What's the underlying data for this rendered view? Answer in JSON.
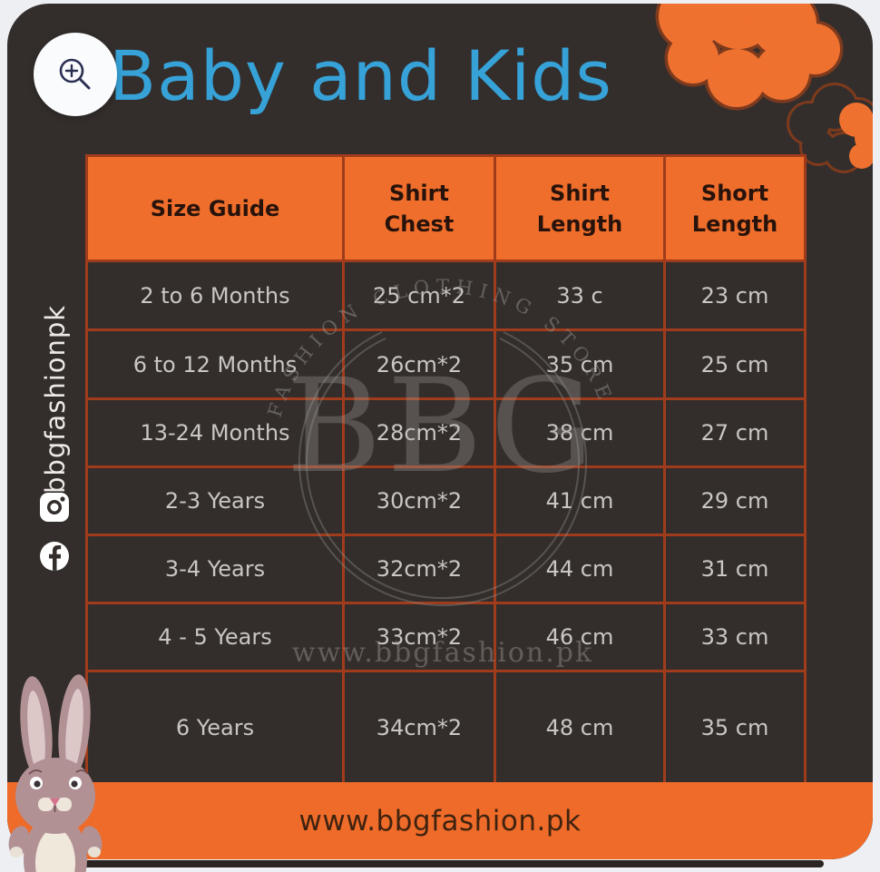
{
  "title": "Baby and Kids",
  "colors": {
    "card_background": "#332e2c",
    "accent_orange": "#ef6e2c",
    "title_blue": "#36a2d7",
    "table_grid": "#a03c1b",
    "cell_text": "#c9c6c3",
    "outer_background": "#edeff3"
  },
  "zoom_button": {
    "icon": "zoom-in-icon"
  },
  "social_rail": {
    "handle": "bbgfashionpk",
    "icons": [
      "instagram-icon",
      "facebook-icon"
    ]
  },
  "watermark": {
    "monogram": "BBG",
    "ring_text": "FASHION CLOTHING STORE",
    "url": "www.bbgfashion.pk"
  },
  "footer": {
    "url": "www.bbgfashion.pk"
  },
  "chart_data": {
    "type": "table",
    "title": "Baby and Kids",
    "columns": [
      "Size Guide",
      "Shirt Chest",
      "Shirt Length",
      "Short Length"
    ],
    "rows": [
      [
        "2 to 6 Months",
        "25 cm*2",
        "33 c",
        "23 cm"
      ],
      [
        "6 to 12 Months",
        "26cm*2",
        "35 cm",
        "25 cm"
      ],
      [
        "13-24 Months",
        "28cm*2",
        "38 cm",
        "27 cm"
      ],
      [
        "2-3 Years",
        "30cm*2",
        "41 cm",
        "29 cm"
      ],
      [
        "3-4 Years",
        "32cm*2",
        "44 cm",
        "31 cm"
      ],
      [
        "4 - 5 Years",
        "33cm*2",
        "46 cm",
        "33 cm"
      ],
      [
        "6 Years",
        "34cm*2",
        "48 cm",
        "35 cm"
      ]
    ]
  }
}
